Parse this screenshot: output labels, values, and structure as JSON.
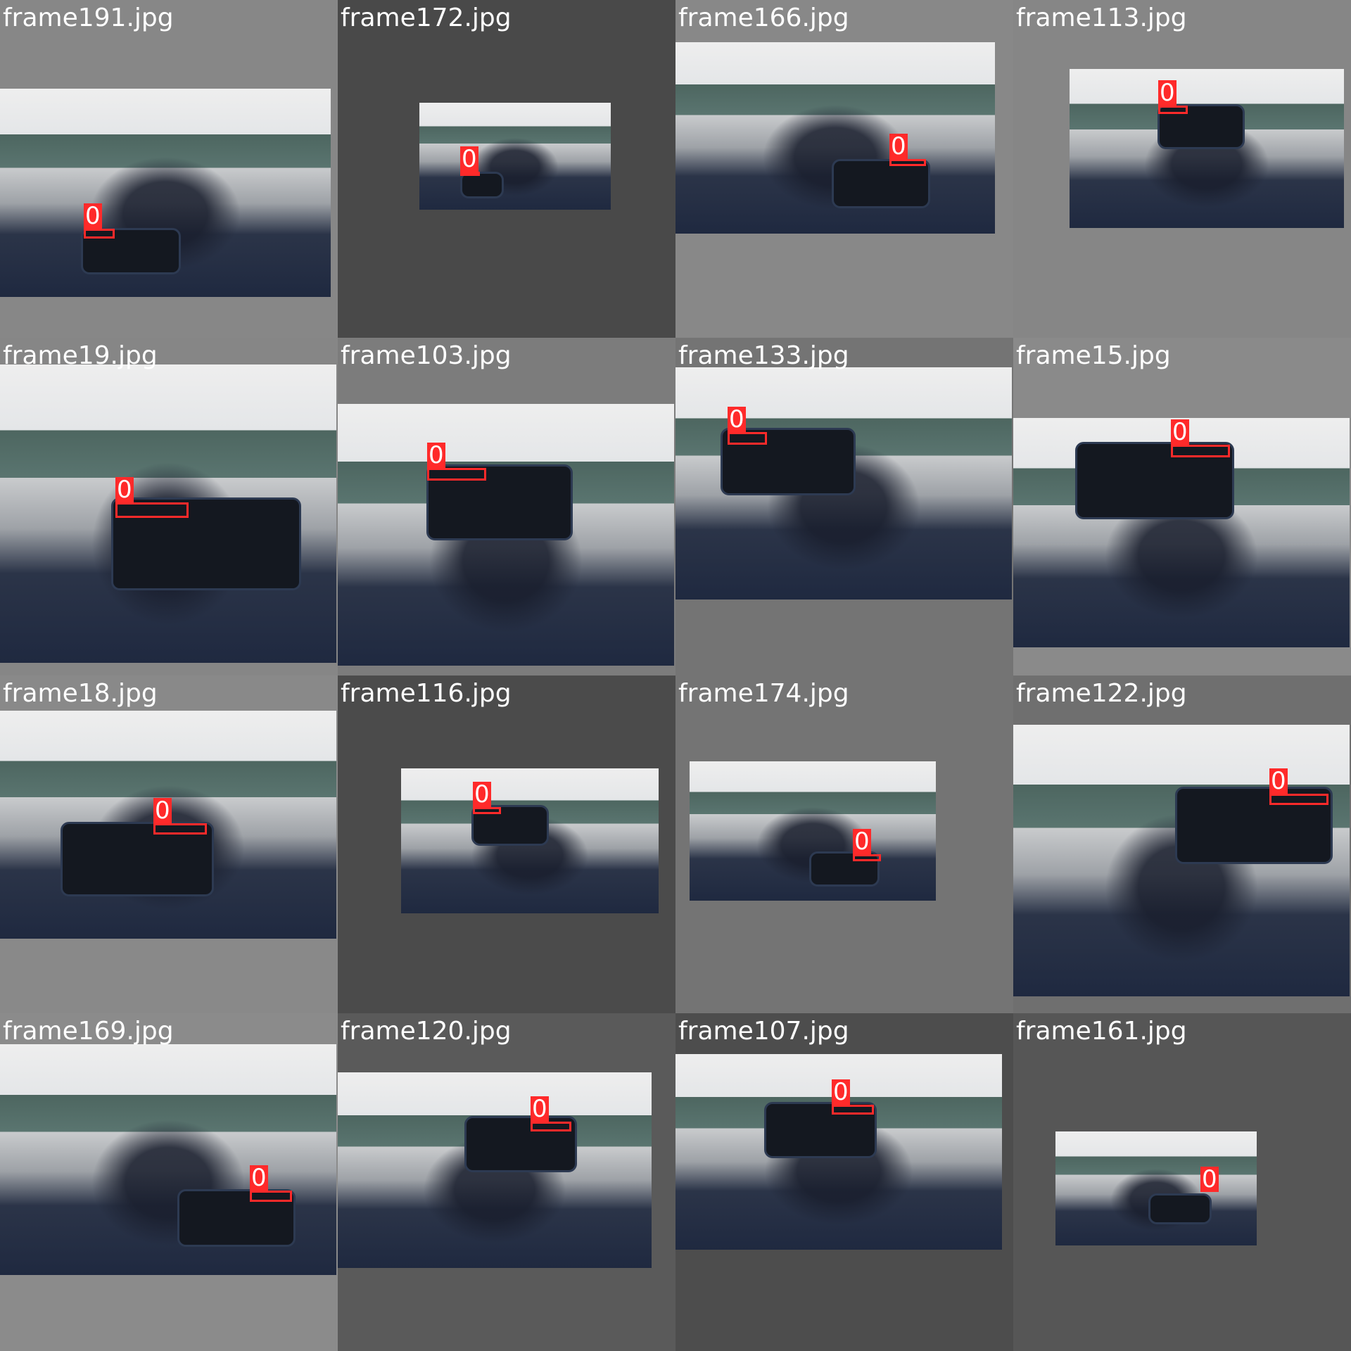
{
  "colors": {
    "box": "#ff2a2a",
    "caption": "#ffffff"
  },
  "class_label": "0",
  "tiles": [
    {
      "name": "frame191.jpg",
      "bg": "#878787"
    },
    {
      "name": "frame172.jpg",
      "bg": "#494949"
    },
    {
      "name": "frame166.jpg",
      "bg": "#888888"
    },
    {
      "name": "frame113.jpg",
      "bg": "#868686"
    },
    {
      "name": "frame19.jpg",
      "bg": "#868686"
    },
    {
      "name": "frame103.jpg",
      "bg": "#7c7c7c"
    },
    {
      "name": "frame133.jpg",
      "bg": "#747474"
    },
    {
      "name": "frame15.jpg",
      "bg": "#8a8a8a"
    },
    {
      "name": "frame18.jpg",
      "bg": "#898989"
    },
    {
      "name": "frame116.jpg",
      "bg": "#4b4b4b"
    },
    {
      "name": "frame174.jpg",
      "bg": "#747474"
    },
    {
      "name": "frame122.jpg",
      "bg": "#6f6f6f"
    },
    {
      "name": "frame169.jpg",
      "bg": "#8b8b8b"
    },
    {
      "name": "frame120.jpg",
      "bg": "#5a5a5a"
    },
    {
      "name": "frame107.jpg",
      "bg": "#4d4d4d"
    },
    {
      "name": "frame161.jpg",
      "bg": "#565656"
    }
  ]
}
